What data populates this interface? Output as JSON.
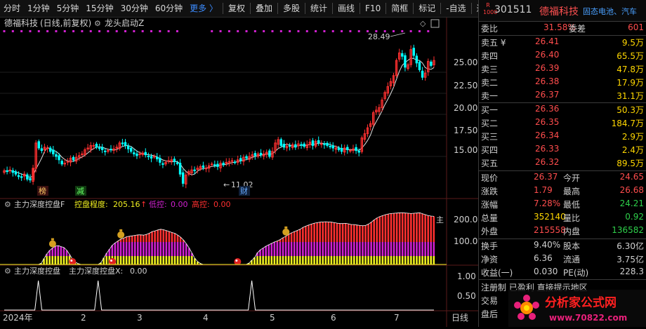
{
  "toolbar": {
    "items": [
      "分时",
      "1分钟",
      "5分钟",
      "15分钟",
      "30分钟",
      "60分钟",
      "更多 〉",
      "复权",
      "叠加",
      "多股",
      "统计",
      "画线",
      "F10",
      "简框",
      "标记",
      "-自选",
      "返回"
    ]
  },
  "main_panel": {
    "title": "德福科技",
    "subtitle": "(日线,前复权)",
    "indicator": "龙头启动Z",
    "y_ticks": [
      "25.00",
      "22.50",
      "20.00",
      "17.50",
      "15.00"
    ],
    "high_label": "28.49",
    "low_label": "11.02",
    "badge_1": "榜",
    "badge_2": "减",
    "badge_3": "财"
  },
  "sub1": {
    "name": "主力深度控盘F",
    "label_degree": "控盘程度:",
    "degree": "205.16",
    "arrow": "↑",
    "label_low": "低控:",
    "low": "0.00",
    "label_high": "高控:",
    "high": "0.00",
    "y_ticks": [
      "200.0",
      "100.0"
    ],
    "edge_label": "主"
  },
  "sub2": {
    "name": "主力深度控盘",
    "label_x": "主力深度控盘X:",
    "x": "0.00",
    "y_ticks": [
      "1.00",
      "0.50"
    ]
  },
  "time_axis": {
    "labels": [
      "2024年",
      "2",
      "3",
      "4",
      "5",
      "6",
      "7"
    ],
    "period": "日线"
  },
  "chart_data": [
    {
      "type": "candlestick",
      "title": "德福科技 (日线,前复权)",
      "x_range": [
        "2024-01",
        "2024-07"
      ],
      "ylim": [
        11.0,
        29.0
      ],
      "y_ticks": [
        25.0,
        22.5,
        20.0,
        17.5,
        15.0
      ],
      "annotations": [
        {
          "label": "28.49",
          "type": "high"
        },
        {
          "label": "11.02",
          "type": "low"
        }
      ],
      "close": [
        13.3,
        13.2,
        13.4,
        13.1,
        12.9,
        12.6,
        12.5,
        12.9,
        12.3,
        12.2,
        13.6,
        16.6,
        16.0,
        15.7,
        16.1,
        16.0,
        15.6,
        15.3,
        15.0,
        14.6,
        14.1,
        14.2,
        14.4,
        14.8,
        14.6,
        14.9,
        15.1,
        15.3,
        15.8,
        16.0,
        16.3,
        16.3,
        16.1,
        16.0,
        15.8,
        15.6,
        15.7,
        15.8,
        15.9,
        16.1,
        16.6,
        16.5,
        16.3,
        15.9,
        15.6,
        15.3,
        15.1,
        15.3,
        15.4,
        15.2,
        15.0,
        14.8,
        15.0,
        14.7,
        14.3,
        14.1,
        14.3,
        14.5,
        14.6,
        14.4,
        14.2,
        12.9,
        11.8,
        12.8,
        13.2,
        13.4,
        13.3,
        13.6,
        13.8,
        13.7,
        13.6,
        13.9,
        14.1,
        14.0,
        13.8,
        14.2,
        14.0,
        14.3,
        14.4,
        14.5,
        14.3,
        14.6,
        14.5,
        14.9,
        14.8,
        15.0,
        15.2,
        15.1,
        15.3,
        15.2,
        15.3,
        15.5,
        15.0,
        15.6,
        16.6,
        17.0,
        16.3,
        16.1,
        16.2,
        16.2,
        16.4,
        16.1,
        16.5,
        16.4,
        16.2,
        16.4,
        16.7,
        16.3,
        16.8,
        16.6,
        16.5,
        16.4,
        16.3,
        16.2,
        16.0,
        16.0,
        15.8,
        15.6,
        16.0,
        15.8,
        15.7,
        15.9,
        15.7,
        15.5,
        17.2,
        17.7,
        18.4,
        18.9,
        20.2,
        20.5,
        20.8,
        21.7,
        22.6,
        23.3,
        23.9,
        24.6,
        26.4,
        27.3,
        26.9,
        25.6,
        25.9,
        27.7,
        27.0,
        26.1,
        25.3,
        24.4,
        24.9,
        26.3,
        25.8,
        26.4
      ],
      "ma5_visible": true
    },
    {
      "type": "bar",
      "title": "主力深度控盘F",
      "series": [
        {
          "name": "控盘程度",
          "last": 205.16
        },
        {
          "name": "低控",
          "last": 0.0
        },
        {
          "name": "高控",
          "last": 0.0
        }
      ],
      "ylim": [
        0,
        230
      ],
      "y_ticks": [
        200.0,
        100.0
      ],
      "values": [
        0,
        0,
        0,
        0,
        0,
        0,
        0,
        0,
        0,
        0,
        0,
        0,
        0,
        5,
        25,
        45,
        60,
        70,
        78,
        80,
        76,
        72,
        60,
        42,
        22,
        10,
        4,
        0,
        0,
        0,
        0,
        0,
        0,
        0,
        8,
        28,
        48,
        65,
        82,
        92,
        100,
        108,
        112,
        118,
        120,
        122,
        124,
        126,
        126,
        125,
        128,
        133,
        140,
        143,
        147,
        150,
        148,
        144,
        140,
        136,
        132,
        125,
        116,
        104,
        88,
        70,
        48,
        26,
        12,
        4,
        0,
        0,
        0,
        0,
        0,
        0,
        0,
        0,
        0,
        0,
        0,
        0,
        0,
        0,
        0,
        0,
        6,
        18,
        30,
        50,
        62,
        70,
        78,
        84,
        90,
        96,
        100,
        106,
        114,
        120,
        128,
        135,
        140,
        145,
        150,
        158,
        163,
        168,
        172,
        176,
        178,
        180,
        181,
        182,
        181,
        180,
        178,
        176,
        174,
        174,
        175,
        173,
        170,
        170,
        168,
        166,
        165,
        166,
        172,
        180,
        190,
        198,
        204,
        208,
        212,
        215,
        217,
        218,
        219,
        220,
        220,
        219,
        218,
        217,
        218,
        219,
        220,
        216,
        212,
        208,
        206,
        205
      ]
    },
    {
      "type": "line",
      "title": "主力深度控盘",
      "series": [
        {
          "name": "主力深度控盘X",
          "last": 0.0
        }
      ],
      "ylim": [
        0,
        1
      ],
      "y_ticks": [
        1.0,
        0.5
      ],
      "pulse_indices": [
        12,
        33,
        87
      ]
    }
  ],
  "quote": {
    "r_badge_top": "R",
    "r_badge_bottom": "1000",
    "code": "301511",
    "name": "德福科技",
    "tag": "固态电池、汽车",
    "weibi_label": "委比",
    "weibi": "31.58%",
    "weicha_label": "委差",
    "weicha": "601",
    "asks": [
      {
        "label": "卖五 ¥",
        "price": "26.41",
        "vol": "9.5万"
      },
      {
        "label": "卖四",
        "price": "26.40",
        "vol": "65.5万"
      },
      {
        "label": "卖三",
        "price": "26.39",
        "vol": "47.8万"
      },
      {
        "label": "卖二",
        "price": "26.38",
        "vol": "17.9万"
      },
      {
        "label": "卖一",
        "price": "26.37",
        "vol": "31.1万"
      }
    ],
    "bids": [
      {
        "label": "买一",
        "price": "26.36",
        "vol": "50.3万"
      },
      {
        "label": "买二",
        "price": "26.35",
        "vol": "184.7万"
      },
      {
        "label": "买三",
        "price": "26.34",
        "vol": "2.9万"
      },
      {
        "label": "买四",
        "price": "26.33",
        "vol": "2.4万"
      },
      {
        "label": "买五",
        "price": "26.32",
        "vol": "89.5万"
      }
    ],
    "stats": [
      {
        "l1": "现价",
        "v1": "26.37",
        "c1": "red",
        "l2": "今开",
        "v2": "24.65",
        "c2": "red"
      },
      {
        "l1": "涨跌",
        "v1": "1.79",
        "c1": "red",
        "l2": "最高",
        "v2": "26.68",
        "c2": "red"
      },
      {
        "l1": "涨幅",
        "v1": "7.28%",
        "c1": "red",
        "l2": "最低",
        "v2": "24.21",
        "c2": "green"
      },
      {
        "l1": "总量",
        "v1": "352140",
        "c1": "yellow",
        "l2": "量比",
        "v2": "0.92",
        "c2": "green"
      },
      {
        "l1": "外盘",
        "v1": "215558",
        "c1": "red",
        "l2": "内盘",
        "v2": "136582",
        "c2": "green"
      }
    ],
    "stats2": [
      {
        "l1": "换手",
        "v1": "9.40%",
        "l2": "股本",
        "v2": "6.30亿"
      },
      {
        "l1": "净资",
        "v1": "6.36",
        "l2": "流通",
        "v2": "3.75亿"
      },
      {
        "l1": "收益(一)",
        "v1": "0.030",
        "l2": "PE(动)",
        "v2": "228.3"
      }
    ],
    "note_1": "注册制 已盈利 直接提示地区",
    "note_2": "交易",
    "note_3": "盘后"
  },
  "watermark": {
    "line1": "分析家公式网",
    "line2": "www.70822.com"
  },
  "colors": {
    "up": "#ff3030",
    "down": "#00ffff",
    "magenta": "#d020d0",
    "yellow": "#f0f020",
    "white": "#ffffff",
    "ma": "#ffffff",
    "accent": "#3c8cff"
  }
}
